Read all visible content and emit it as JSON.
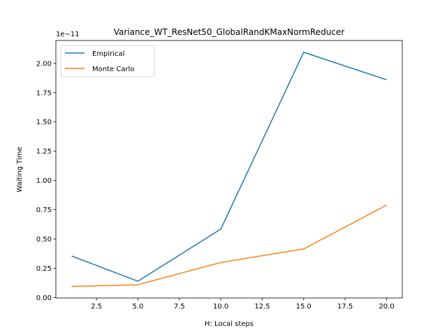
{
  "chart_data": {
    "type": "line",
    "title": "Variance_WT_ResNet50_GlobalRandKMaxNormReducer",
    "xlabel": "H: Local steps",
    "ylabel": "Waiting Time",
    "y_offset_label": "1e−11",
    "x": [
      1,
      5,
      10,
      15,
      20
    ],
    "xlim": [
      0.05,
      20.95
    ],
    "ylim": [
      -0.0035,
      2.1955
    ],
    "xticks": [
      2.5,
      5.0,
      7.5,
      10.0,
      12.5,
      15.0,
      17.5,
      20.0
    ],
    "xtick_labels": [
      "2.5",
      "5.0",
      "7.5",
      "10.0",
      "12.5",
      "15.0",
      "17.5",
      "20.0"
    ],
    "yticks": [
      0.0,
      0.25,
      0.5,
      0.75,
      1.0,
      1.25,
      1.5,
      1.75,
      2.0
    ],
    "ytick_labels": [
      "0.00",
      "0.25",
      "0.50",
      "0.75",
      "1.00",
      "1.25",
      "1.50",
      "1.75",
      "2.00"
    ],
    "grid": false,
    "legend_position": "top-left",
    "series": [
      {
        "name": "Empirical",
        "color": "#1f77b4",
        "values": [
          0.355,
          0.14,
          0.585,
          2.095,
          1.86
        ]
      },
      {
        "name": "Monte Carlo",
        "color": "#ff7f0e",
        "values": [
          0.095,
          0.11,
          0.3,
          0.415,
          0.79
        ]
      }
    ]
  }
}
